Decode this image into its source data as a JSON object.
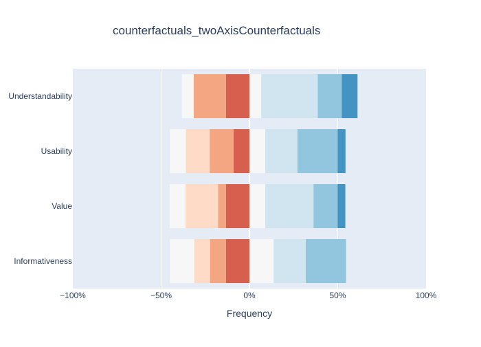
{
  "chart_data": {
    "type": "bar",
    "orientation": "horizontal",
    "barmode": "relative",
    "title": "counterfactuals_twoAxisCounterfactuals",
    "xlabel": "Frequency",
    "ylabel": "",
    "xlim": [
      -100,
      100
    ],
    "x_ticks": [
      -100,
      -50,
      0,
      50,
      100
    ],
    "x_tick_labels": [
      "−100%",
      "−50%",
      "0%",
      "50%",
      "100%"
    ],
    "categories": [
      "Understandability",
      "Usability",
      "Value",
      "Informativeness"
    ],
    "grid": true,
    "legend": "none",
    "series": [
      {
        "color": "#d6604d",
        "values": [
          -13.3,
          -9,
          -13.3,
          -13.3
        ]
      },
      {
        "color": "#f4a582",
        "values": [
          -18.3,
          -13.5,
          -4.5,
          -9
        ]
      },
      {
        "color": "#fddbc7",
        "values": [
          0,
          -13.5,
          -18.4,
          -9
        ]
      },
      {
        "color": "#f7f7f7",
        "values": [
          -6.7,
          -9,
          -9,
          -13.7
        ]
      },
      {
        "color": "#f7f7f7",
        "values": [
          6.7,
          9,
          9,
          13.7
        ]
      },
      {
        "color": "#d1e5f0",
        "values": [
          32,
          18.2,
          27.3,
          18.2
        ]
      },
      {
        "color": "#92c5de",
        "values": [
          13.6,
          22.8,
          13.6,
          22.8
        ]
      },
      {
        "color": "#4393c3",
        "values": [
          8.9,
          4.4,
          4.4,
          0
        ]
      }
    ]
  }
}
